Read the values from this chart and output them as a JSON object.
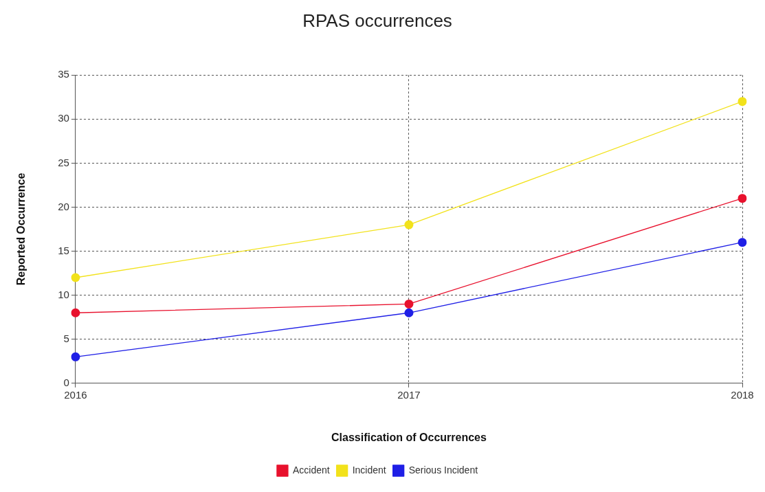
{
  "chart_data": {
    "type": "line",
    "title": "RPAS occurrences",
    "xlabel": "Classification of Occurrences",
    "ylabel": "Reported Occurrence",
    "categories": [
      "2016",
      "2017",
      "2018"
    ],
    "series": [
      {
        "name": "Accident",
        "color": "#e8112d",
        "values": [
          8,
          9,
          21
        ]
      },
      {
        "name": "Incident",
        "color": "#f2e21b",
        "values": [
          12,
          18,
          32
        ]
      },
      {
        "name": "Serious Incident",
        "color": "#1f1fe6",
        "values": [
          3,
          8,
          16
        ]
      }
    ],
    "ylim": [
      0,
      35
    ],
    "yticks": [
      0,
      5,
      10,
      15,
      20,
      25,
      30,
      35
    ],
    "grid": true,
    "legend": "bottom",
    "marker": "circle",
    "line_style": "solid"
  }
}
